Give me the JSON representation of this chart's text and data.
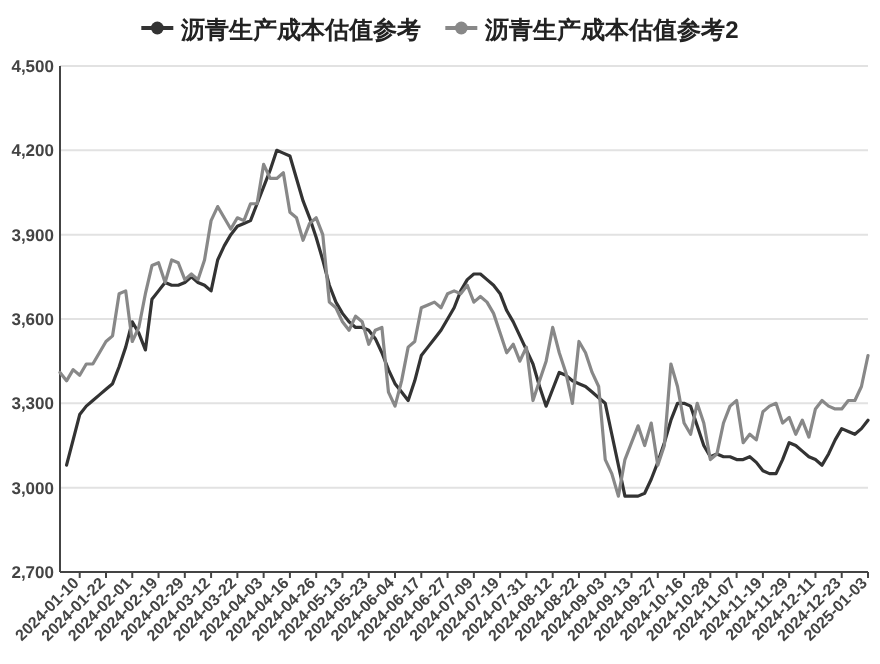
{
  "chart_data": {
    "type": "line",
    "categories": [
      null,
      null,
      null,
      "2024-01-10",
      null,
      null,
      null,
      "2024-01-22",
      null,
      null,
      null,
      "2024-02-01",
      null,
      null,
      null,
      "2024-02-19",
      null,
      null,
      null,
      "2024-02-29",
      null,
      null,
      null,
      "2024-03-12",
      null,
      null,
      null,
      "2024-03-22",
      null,
      null,
      null,
      "2024-04-03",
      null,
      null,
      null,
      "2024-04-16",
      null,
      null,
      null,
      "2024-04-26",
      null,
      null,
      null,
      "2024-05-13",
      null,
      null,
      null,
      "2024-05-23",
      null,
      null,
      null,
      "2024-06-04",
      null,
      null,
      null,
      "2024-06-17",
      null,
      null,
      null,
      "2024-06-27",
      null,
      null,
      null,
      "2024-07-09",
      null,
      null,
      null,
      "2024-07-19",
      null,
      null,
      null,
      "2024-07-31",
      null,
      null,
      null,
      "2024-08-12",
      null,
      null,
      null,
      "2024-08-22",
      null,
      null,
      null,
      "2024-09-03",
      null,
      null,
      null,
      "2024-09-13",
      null,
      null,
      null,
      "2024-09-27",
      null,
      null,
      null,
      "2024-10-16",
      null,
      null,
      null,
      "2024-10-28",
      null,
      null,
      null,
      "2024-11-07",
      null,
      null,
      null,
      "2024-11-19",
      null,
      null,
      null,
      "2024-11-29",
      null,
      null,
      null,
      "2024-12-11",
      null,
      null,
      null,
      "2024-12-23",
      null,
      null,
      null,
      "2025-01-03"
    ],
    "series": [
      {
        "name": "沥青生产成本估值参考",
        "color": "#333333",
        "values": [
          null,
          3080,
          3170,
          3260,
          3290,
          3310,
          3330,
          3350,
          3370,
          3430,
          3500,
          3590,
          3550,
          3490,
          3670,
          3700,
          3730,
          3720,
          3720,
          3730,
          3750,
          3730,
          3720,
          3700,
          3810,
          3860,
          3900,
          3930,
          3940,
          3950,
          4010,
          4070,
          4130,
          4200,
          4190,
          4180,
          4100,
          4020,
          3960,
          3890,
          3810,
          3720,
          3660,
          3620,
          3590,
          3570,
          3570,
          3560,
          3530,
          3480,
          3420,
          3370,
          3340,
          3310,
          3380,
          3470,
          3500,
          3530,
          3560,
          3600,
          3640,
          3700,
          3740,
          3760,
          3760,
          3740,
          3720,
          3690,
          3630,
          3590,
          3540,
          3490,
          3440,
          3360,
          3290,
          3350,
          3410,
          3400,
          3380,
          3370,
          3360,
          3340,
          3320,
          3300,
          3190,
          3080,
          2970,
          2970,
          2970,
          2980,
          3030,
          3090,
          3160,
          3240,
          3300,
          3300,
          3290,
          3220,
          3150,
          3110,
          3120,
          3110,
          3110,
          3100,
          3100,
          3110,
          3090,
          3060,
          3050,
          3050,
          3100,
          3160,
          3150,
          3130,
          3110,
          3100,
          3080,
          3120,
          3170,
          3210,
          3200,
          3190,
          3210,
          3240
        ]
      },
      {
        "name": "沥青生产成本估值参考2",
        "color": "#888888",
        "values": [
          3410,
          3380,
          3420,
          3400,
          3440,
          3440,
          3480,
          3520,
          3540,
          3690,
          3700,
          3520,
          3570,
          3690,
          3790,
          3800,
          3730,
          3810,
          3800,
          3740,
          3760,
          3740,
          3810,
          3950,
          4000,
          3960,
          3920,
          3960,
          3950,
          4010,
          4010,
          4150,
          4100,
          4100,
          4120,
          3980,
          3960,
          3880,
          3940,
          3960,
          3900,
          3660,
          3640,
          3590,
          3560,
          3610,
          3590,
          3510,
          3560,
          3570,
          3340,
          3290,
          3380,
          3500,
          3520,
          3640,
          3650,
          3660,
          3640,
          3690,
          3700,
          3690,
          3720,
          3660,
          3680,
          3660,
          3620,
          3550,
          3480,
          3510,
          3450,
          3500,
          3310,
          3380,
          3450,
          3570,
          3480,
          3410,
          3300,
          3520,
          3480,
          3410,
          3360,
          3100,
          3050,
          2970,
          3100,
          3160,
          3220,
          3150,
          3230,
          3080,
          3150,
          3440,
          3360,
          3230,
          3190,
          3300,
          3230,
          3100,
          3120,
          3230,
          3290,
          3310,
          3160,
          3190,
          3170,
          3270,
          3290,
          3300,
          3230,
          3250,
          3190,
          3240,
          3180,
          3280,
          3310,
          3290,
          3280,
          3280,
          3310,
          3310,
          3360,
          3470
        ]
      }
    ],
    "ylim": [
      2700,
      4500
    ],
    "yticks": [
      {
        "value": 2700,
        "label": "2,700"
      },
      {
        "value": 3000,
        "label": "3,000"
      },
      {
        "value": 3300,
        "label": "3,300"
      },
      {
        "value": 3600,
        "label": "3,600"
      },
      {
        "value": 3900,
        "label": "3,900"
      },
      {
        "value": 4200,
        "label": "4,200"
      },
      {
        "value": 4500,
        "label": "4,500"
      }
    ],
    "grid": "y",
    "legend": "top"
  }
}
